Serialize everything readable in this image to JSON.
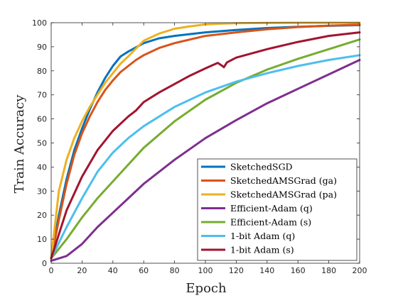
{
  "chart_data": {
    "type": "line",
    "title": "",
    "xlabel": "Epoch",
    "ylabel": "Train Accuracy",
    "xlim": [
      0,
      200
    ],
    "ylim": [
      0,
      100
    ],
    "xticks": [
      0,
      20,
      40,
      60,
      80,
      100,
      120,
      140,
      160,
      180,
      200
    ],
    "yticks": [
      0,
      10,
      20,
      30,
      40,
      50,
      60,
      70,
      80,
      90,
      100
    ],
    "grid": false,
    "legend_position": "bottom-right",
    "series": [
      {
        "name": "SketchedSGD",
        "color": "#0072BD",
        "x": [
          0,
          5,
          10,
          15,
          20,
          25,
          30,
          35,
          40,
          45,
          50,
          60,
          70,
          80,
          100,
          120,
          140,
          160,
          180,
          200
        ],
        "y": [
          2,
          20,
          35,
          47,
          56,
          64,
          71,
          77,
          82,
          86,
          88,
          91.5,
          93.5,
          94.5,
          96,
          97,
          97.8,
          98.3,
          98.7,
          99
        ]
      },
      {
        "name": "SketchedAMSGrad (ga)",
        "color": "#D95319",
        "x": [
          0,
          5,
          10,
          15,
          20,
          25,
          30,
          35,
          40,
          45,
          50,
          55,
          60,
          70,
          80,
          100,
          120,
          140,
          160,
          180,
          200
        ],
        "y": [
          2,
          18,
          33,
          45,
          54,
          61,
          67,
          72,
          76,
          79.5,
          82,
          84.5,
          86.5,
          89.5,
          91.5,
          94.5,
          96,
          97.3,
          98.2,
          98.8,
          99.2
        ]
      },
      {
        "name": "SketchedAMSGrad (pa)",
        "color": "#EDB120",
        "x": [
          0,
          5,
          10,
          15,
          20,
          25,
          30,
          35,
          40,
          45,
          50,
          60,
          70,
          80,
          90,
          100,
          110,
          120,
          140,
          160,
          200
        ],
        "y": [
          2,
          30,
          43,
          52,
          59,
          65,
          70,
          75,
          79,
          83,
          86,
          92.5,
          95.5,
          97.5,
          98.5,
          99.3,
          99.6,
          99.8,
          99.9,
          100,
          100
        ]
      },
      {
        "name": "Efficient-Adam (q)",
        "color": "#7E2F8E",
        "x": [
          0,
          10,
          20,
          30,
          40,
          50,
          60,
          80,
          100,
          120,
          140,
          160,
          180,
          200
        ],
        "y": [
          1,
          3,
          8,
          15,
          21,
          27,
          33,
          43,
          52,
          59.5,
          66.5,
          72.5,
          78.5,
          84.5
        ]
      },
      {
        "name": "Efficient-Adam (s)",
        "color": "#77AC30",
        "x": [
          0,
          10,
          20,
          30,
          40,
          50,
          60,
          80,
          100,
          120,
          140,
          160,
          180,
          200
        ],
        "y": [
          2,
          10,
          19,
          27,
          34,
          41,
          48,
          59,
          68,
          75,
          80.5,
          85,
          89,
          93
        ]
      },
      {
        "name": "1-bit Adam (q)",
        "color": "#4DBEEE",
        "x": [
          0,
          10,
          20,
          30,
          40,
          50,
          60,
          80,
          100,
          120,
          140,
          160,
          180,
          200
        ],
        "y": [
          2,
          15,
          27,
          38,
          46,
          52,
          57,
          65,
          71,
          75.5,
          79,
          82,
          84.5,
          86.5
        ]
      },
      {
        "name": "1-bit Adam (s)",
        "color": "#A2142F",
        "x": [
          0,
          5,
          10,
          20,
          30,
          40,
          50,
          55,
          60,
          70,
          80,
          90,
          100,
          108,
          111,
          112,
          114,
          120,
          140,
          160,
          180,
          200
        ],
        "y": [
          2,
          12,
          22,
          36,
          47,
          55,
          61,
          63.5,
          67,
          71,
          74.5,
          78,
          81,
          83.3,
          82,
          81.5,
          83.5,
          85.5,
          89,
          92,
          94.5,
          96
        ]
      }
    ]
  }
}
